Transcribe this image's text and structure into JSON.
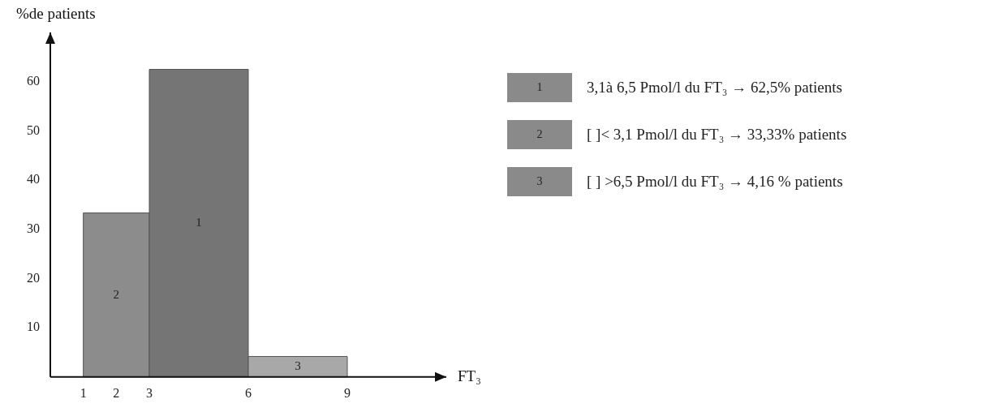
{
  "chart_data": {
    "type": "histogram",
    "xlabel": "FT₃",
    "ylabel": "%de patients",
    "bins": [
      1,
      3,
      6,
      9
    ],
    "values": [
      33.33,
      62.5,
      4.16
    ],
    "colors": [
      "#8c8c8c",
      "#757575",
      "#a8a8a8"
    ],
    "xlim": [
      0,
      12
    ],
    "xticks": [
      1,
      2,
      3,
      6,
      9
    ],
    "ylim": [
      0,
      70
    ],
    "yticks": [
      10,
      20,
      30,
      40,
      50,
      60
    ],
    "grid": false,
    "legend": false,
    "annotations": [
      "2",
      "1",
      "3",
      "1",
      "3,1à 6,5 Pmol/l du FT₃ → 62,5% patients",
      "2",
      "[ ]< 3,1 Pmol/l du FT₃ → 33,33% patients",
      "3",
      "[ ] >6,5 Pmol/l du FT₃ → 4,16 % patients"
    ]
  }
}
